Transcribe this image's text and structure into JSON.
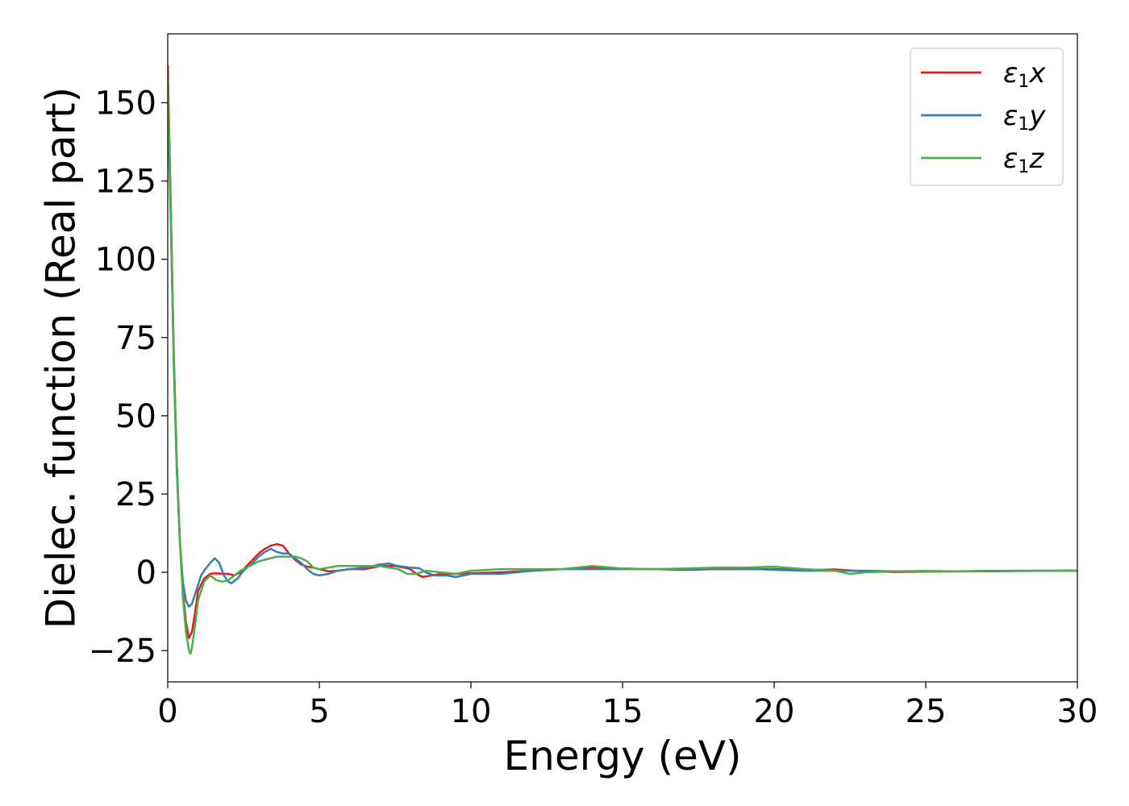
{
  "chart_data": {
    "type": "line",
    "title": "",
    "xlabel": "Energy (eV)",
    "ylabel": "Dielec. function (Real part)",
    "xlim": [
      0,
      30
    ],
    "ylim": [
      -35,
      172
    ],
    "xticks": [
      0,
      5,
      10,
      15,
      20,
      25,
      30
    ],
    "xtick_labels": [
      "0",
      "5",
      "10",
      "15",
      "20",
      "25",
      "30"
    ],
    "yticks": [
      -25,
      0,
      25,
      50,
      75,
      100,
      125,
      150
    ],
    "ytick_labels": [
      "−25",
      "0",
      "25",
      "50",
      "75",
      "100",
      "125",
      "150"
    ],
    "grid": false,
    "legend_position": "top-right",
    "series": [
      {
        "name": "ε1x",
        "label_base": "ε",
        "label_sub": "1",
        "label_var": "x",
        "color": "#e41a1c",
        "points": [
          [
            0,
            162
          ],
          [
            0.1,
            118
          ],
          [
            0.2,
            70
          ],
          [
            0.3,
            35
          ],
          [
            0.4,
            10
          ],
          [
            0.5,
            -6
          ],
          [
            0.6,
            -16
          ],
          [
            0.7,
            -21
          ],
          [
            0.8,
            -19
          ],
          [
            0.9,
            -13
          ],
          [
            1.0,
            -6
          ],
          [
            1.2,
            -2
          ],
          [
            1.4,
            -0.5
          ],
          [
            1.6,
            -0.3
          ],
          [
            1.8,
            -0.5
          ],
          [
            2.0,
            -0.5
          ],
          [
            2.2,
            -1
          ],
          [
            2.4,
            0
          ],
          [
            2.6,
            2
          ],
          [
            2.8,
            4
          ],
          [
            3.0,
            6
          ],
          [
            3.2,
            7.5
          ],
          [
            3.4,
            8.5
          ],
          [
            3.6,
            9
          ],
          [
            3.8,
            8.5
          ],
          [
            4.0,
            6
          ],
          [
            4.2,
            4
          ],
          [
            4.4,
            2.5
          ],
          [
            4.6,
            1.8
          ],
          [
            4.8,
            1.5
          ],
          [
            5.0,
            1
          ],
          [
            5.3,
            0.3
          ],
          [
            5.6,
            0.5
          ],
          [
            6.0,
            1
          ],
          [
            6.5,
            1
          ],
          [
            7.0,
            2
          ],
          [
            7.5,
            2
          ],
          [
            7.8,
            1.5
          ],
          [
            8.0,
            1
          ],
          [
            8.2,
            -0.5
          ],
          [
            8.4,
            -1.5
          ],
          [
            8.7,
            -1
          ],
          [
            9.0,
            -0.5
          ],
          [
            9.5,
            -0.5
          ],
          [
            10,
            -0.3
          ],
          [
            11,
            0
          ],
          [
            12,
            0.5
          ],
          [
            13,
            1
          ],
          [
            14,
            1.5
          ],
          [
            15,
            1.2
          ],
          [
            16,
            1
          ],
          [
            17,
            0.8
          ],
          [
            18,
            1
          ],
          [
            19,
            1
          ],
          [
            20,
            1
          ],
          [
            21,
            0.7
          ],
          [
            22,
            0.9
          ],
          [
            23,
            0.3
          ],
          [
            24,
            0.1
          ],
          [
            25,
            0.2
          ],
          [
            26,
            0.3
          ],
          [
            27,
            0.3
          ],
          [
            28,
            0.4
          ],
          [
            29,
            0.5
          ],
          [
            30,
            0.5
          ]
        ]
      },
      {
        "name": "ε1y",
        "label_base": "ε",
        "label_sub": "1",
        "label_var": "y",
        "color": "#377eb8",
        "points": [
          [
            0,
            152
          ],
          [
            0.1,
            112
          ],
          [
            0.2,
            66
          ],
          [
            0.3,
            32
          ],
          [
            0.4,
            10
          ],
          [
            0.5,
            -3
          ],
          [
            0.6,
            -9
          ],
          [
            0.7,
            -11
          ],
          [
            0.8,
            -10
          ],
          [
            0.9,
            -7
          ],
          [
            1.0,
            -4
          ],
          [
            1.1,
            -1
          ],
          [
            1.2,
            0.5
          ],
          [
            1.4,
            3
          ],
          [
            1.55,
            4.5
          ],
          [
            1.7,
            3
          ],
          [
            1.85,
            -1
          ],
          [
            2.0,
            -3
          ],
          [
            2.1,
            -3.5
          ],
          [
            2.3,
            -2
          ],
          [
            2.5,
            0.5
          ],
          [
            2.8,
            3
          ],
          [
            3.0,
            5
          ],
          [
            3.2,
            6.5
          ],
          [
            3.4,
            7.5
          ],
          [
            3.6,
            6.5
          ],
          [
            3.8,
            6
          ],
          [
            4.0,
            6
          ],
          [
            4.2,
            4.5
          ],
          [
            4.4,
            3
          ],
          [
            4.6,
            1
          ],
          [
            4.8,
            -0.5
          ],
          [
            5.0,
            -1
          ],
          [
            5.3,
            -0.5
          ],
          [
            5.6,
            0.5
          ],
          [
            6.0,
            1
          ],
          [
            6.5,
            1.5
          ],
          [
            7.0,
            2.5
          ],
          [
            7.3,
            2.8
          ],
          [
            7.6,
            2
          ],
          [
            8.0,
            1.5
          ],
          [
            8.3,
            1.3
          ],
          [
            8.5,
            0
          ],
          [
            8.8,
            -1
          ],
          [
            9.2,
            -1
          ],
          [
            9.5,
            -1.5
          ],
          [
            10,
            -0.5
          ],
          [
            11,
            -0.5
          ],
          [
            12,
            0.5
          ],
          [
            13,
            1
          ],
          [
            14,
            1
          ],
          [
            15,
            1
          ],
          [
            16,
            1
          ],
          [
            17,
            1
          ],
          [
            18,
            1.2
          ],
          [
            19,
            1.2
          ],
          [
            20,
            0.8
          ],
          [
            21,
            0.5
          ],
          [
            22,
            0.5
          ],
          [
            23,
            0.5
          ],
          [
            24,
            0.3
          ],
          [
            25,
            0.4
          ],
          [
            26,
            0.3
          ],
          [
            27,
            0.5
          ],
          [
            28,
            0.5
          ],
          [
            29,
            0.5
          ],
          [
            30,
            0.6
          ]
        ]
      },
      {
        "name": "ε1z",
        "label_base": "ε",
        "label_sub": "1",
        "label_var": "z",
        "color": "#4daf4a",
        "points": [
          [
            0,
            158
          ],
          [
            0.1,
            116
          ],
          [
            0.2,
            68
          ],
          [
            0.3,
            34
          ],
          [
            0.4,
            10
          ],
          [
            0.5,
            -8
          ],
          [
            0.6,
            -19
          ],
          [
            0.7,
            -25
          ],
          [
            0.75,
            -26
          ],
          [
            0.8,
            -24
          ],
          [
            0.9,
            -17
          ],
          [
            1.0,
            -9
          ],
          [
            1.2,
            -3
          ],
          [
            1.4,
            -1
          ],
          [
            1.6,
            -2.5
          ],
          [
            1.8,
            -3
          ],
          [
            2.0,
            -2.5
          ],
          [
            2.2,
            -1
          ],
          [
            2.4,
            0.5
          ],
          [
            2.6,
            1.5
          ],
          [
            2.8,
            2.5
          ],
          [
            3.0,
            3.5
          ],
          [
            3.2,
            4
          ],
          [
            3.4,
            4.5
          ],
          [
            3.6,
            5
          ],
          [
            3.8,
            5
          ],
          [
            4.0,
            5
          ],
          [
            4.2,
            5
          ],
          [
            4.4,
            4.5
          ],
          [
            4.6,
            3.5
          ],
          [
            4.8,
            1.5
          ],
          [
            5.0,
            1
          ],
          [
            5.3,
            1.5
          ],
          [
            5.6,
            2
          ],
          [
            6.0,
            2
          ],
          [
            6.5,
            2
          ],
          [
            7.0,
            2
          ],
          [
            7.3,
            1.5
          ],
          [
            7.6,
            1
          ],
          [
            7.9,
            -0.5
          ],
          [
            8.2,
            -0.5
          ],
          [
            8.5,
            0.5
          ],
          [
            9.0,
            0
          ],
          [
            9.5,
            -0.5
          ],
          [
            10,
            0.5
          ],
          [
            11,
            1
          ],
          [
            12,
            1
          ],
          [
            13,
            1
          ],
          [
            14,
            2
          ],
          [
            15,
            1.2
          ],
          [
            16,
            1
          ],
          [
            17,
            1.2
          ],
          [
            18,
            1.5
          ],
          [
            19,
            1.5
          ],
          [
            20,
            1.8
          ],
          [
            21,
            1
          ],
          [
            22,
            0.5
          ],
          [
            22.5,
            -0.5
          ],
          [
            23,
            0
          ],
          [
            24,
            0.3
          ],
          [
            25,
            0.2
          ],
          [
            26,
            0.3
          ],
          [
            27,
            0.4
          ],
          [
            28,
            0.5
          ],
          [
            29,
            0.5
          ],
          [
            30,
            0.6
          ]
        ]
      }
    ]
  }
}
